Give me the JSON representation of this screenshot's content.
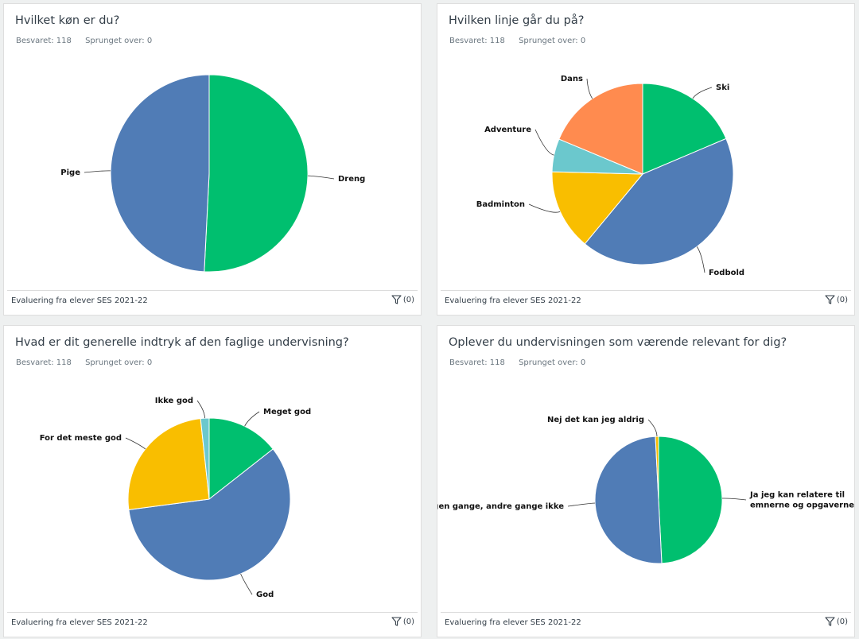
{
  "colors": {
    "green": "#00bf6f",
    "blue": "#507cb6",
    "yellow": "#f9be00",
    "teal": "#6bc8cd",
    "orange": "#ff8b4f"
  },
  "icons": {
    "filter": "filter-icon"
  },
  "cards": [
    {
      "title": "Hvilket køn er du?",
      "answered_text": "Besvaret: 118",
      "skipped_text": "Sprunget over: 0",
      "survey_name": "Evaluering fra elever SES 2021-22",
      "filter_count": "(0)"
    },
    {
      "title": "Hvilken linje går du på?",
      "answered_text": "Besvaret: 118",
      "skipped_text": "Sprunget over: 0",
      "survey_name": "Evaluering fra elever SES 2021-22",
      "filter_count": "(0)"
    },
    {
      "title": "Hvad er dit generelle indtryk af den faglige undervisning?",
      "answered_text": "Besvaret: 118",
      "skipped_text": "Sprunget over: 0",
      "survey_name": "Evaluering fra elever SES 2021-22",
      "filter_count": "(0)"
    },
    {
      "title": "Oplever du undervisningen som værende relevant for dig?",
      "answered_text": "Besvaret: 118",
      "skipped_text": "Sprunget over: 0",
      "survey_name": "Evaluering fra elever SES 2021-22",
      "filter_count": "(0)"
    }
  ],
  "chart_data": [
    {
      "type": "pie",
      "slices": [
        {
          "label": [
            "Dreng"
          ],
          "value": 50.8,
          "color": "#00bf6f"
        },
        {
          "label": [
            "Pige"
          ],
          "value": 49.2,
          "color": "#507cb6"
        }
      ]
    },
    {
      "type": "pie",
      "slices": [
        {
          "label": [
            "Ski"
          ],
          "value": 18.6,
          "color": "#00bf6f"
        },
        {
          "label": [
            "Fodbold"
          ],
          "value": 42.4,
          "color": "#507cb6"
        },
        {
          "label": [
            "Badminton"
          ],
          "value": 14.4,
          "color": "#f9be00"
        },
        {
          "label": [
            "Adventure"
          ],
          "value": 5.9,
          "color": "#6bc8cd"
        },
        {
          "label": [
            "Dans"
          ],
          "value": 18.7,
          "color": "#ff8b4f"
        }
      ]
    },
    {
      "type": "pie",
      "slices": [
        {
          "label": [
            "Meget god"
          ],
          "value": 14.4,
          "color": "#00bf6f"
        },
        {
          "label": [
            "God"
          ],
          "value": 58.5,
          "color": "#507cb6"
        },
        {
          "label": [
            "For det meste god"
          ],
          "value": 25.4,
          "color": "#f9be00"
        },
        {
          "label": [
            "Ikke god"
          ],
          "value": 1.7,
          "color": "#6bc8cd"
        }
      ]
    },
    {
      "type": "pie",
      "slices": [
        {
          "label": [
            "Ja jeg kan relatere til",
            "emnerne og opgaverne"
          ],
          "value": 49.2,
          "color": "#00bf6f"
        },
        {
          "label": [
            "Nogen gange, andre gange ikke"
          ],
          "value": 50.0,
          "color": "#507cb6"
        },
        {
          "label": [
            "Nej det kan jeg aldrig"
          ],
          "value": 0.8,
          "color": "#f9be00"
        }
      ]
    }
  ]
}
